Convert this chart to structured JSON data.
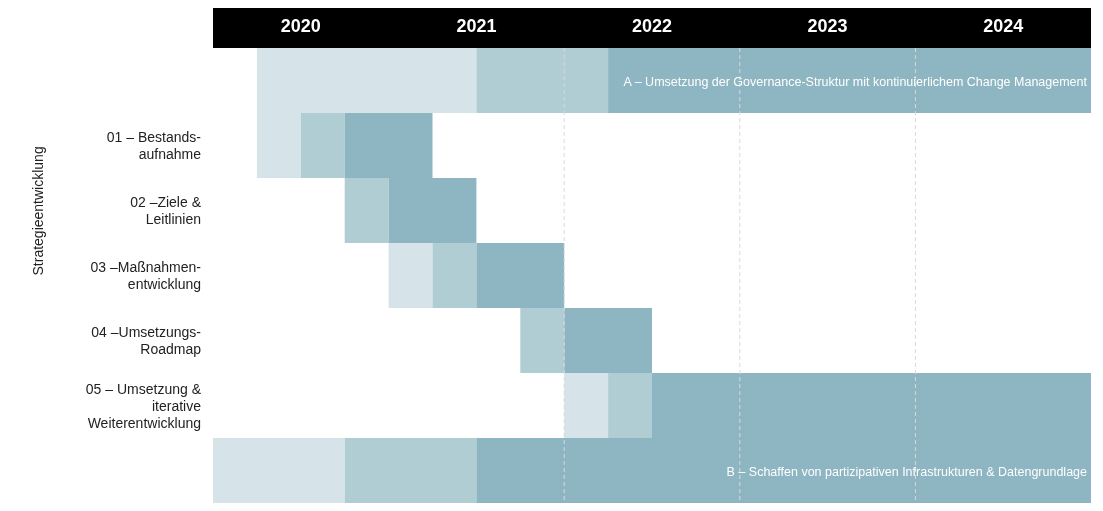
{
  "chart_data": {
    "type": "bar",
    "orientation": "horizontal",
    "ylabel": "Strategieentwicklung",
    "categories": [
      null,
      "01 – Bestands-\naufnahme",
      "02 –Ziele &\nLeitlinien",
      "03 –Maßnahmen-\nentwicklung",
      "04 –Umsetzungs-\nRoadmap",
      "05 – Umsetzung &\niterative\nWeiterentwicklung",
      null
    ],
    "series": [
      {
        "color": "#d6e4e9",
        "base": [
          2020.25,
          2020.25,
          null,
          2021,
          null,
          2022,
          2020
        ],
        "values": [
          1.25,
          0.25,
          null,
          0.25,
          null,
          0.25,
          0.75
        ]
      },
      {
        "color": "#b0cdd3",
        "base": [
          2021.5,
          2020.5,
          2020.75,
          2021.25,
          2021.75,
          2022.25,
          2020.75
        ],
        "values": [
          0.75,
          0.25,
          0.25,
          0.25,
          0.25,
          0.25,
          0.75
        ]
      },
      {
        "color": "#8db5c2",
        "base": [
          2022.25,
          2020.75,
          2021,
          2021.5,
          2022,
          2022.5,
          2021.5
        ],
        "values": [
          2.75,
          0.5,
          0.5,
          0.5,
          0.5,
          2.5,
          3.5
        ],
        "value_labels": [
          "A – Umsetzung der Governance-Struktur mit kontinuierlichem Change Management",
          null,
          null,
          null,
          null,
          null,
          "B – Schaffen von partizipativen Infrastrukturen & Datengrundlage"
        ]
      }
    ],
    "xlim": [
      2020,
      2025
    ],
    "xticks": [
      {
        "value": 2020.5,
        "label": "2020"
      },
      {
        "value": 2021.5,
        "label": "2021"
      },
      {
        "value": 2022.5,
        "label": "2022"
      },
      {
        "value": 2023.5,
        "label": "2023"
      },
      {
        "value": 2024.5,
        "label": "2024"
      }
    ],
    "ref_lines": [
      {
        "axis": "x",
        "value": 2022,
        "line_style": "dashed",
        "color": "#d9d9d9"
      },
      {
        "axis": "x",
        "value": 2023,
        "line_style": "dashed",
        "color": "#d9d9d9"
      },
      {
        "axis": "x",
        "value": 2024,
        "line_style": "dashed",
        "color": "#d9d9d9"
      }
    ],
    "grid": false
  }
}
